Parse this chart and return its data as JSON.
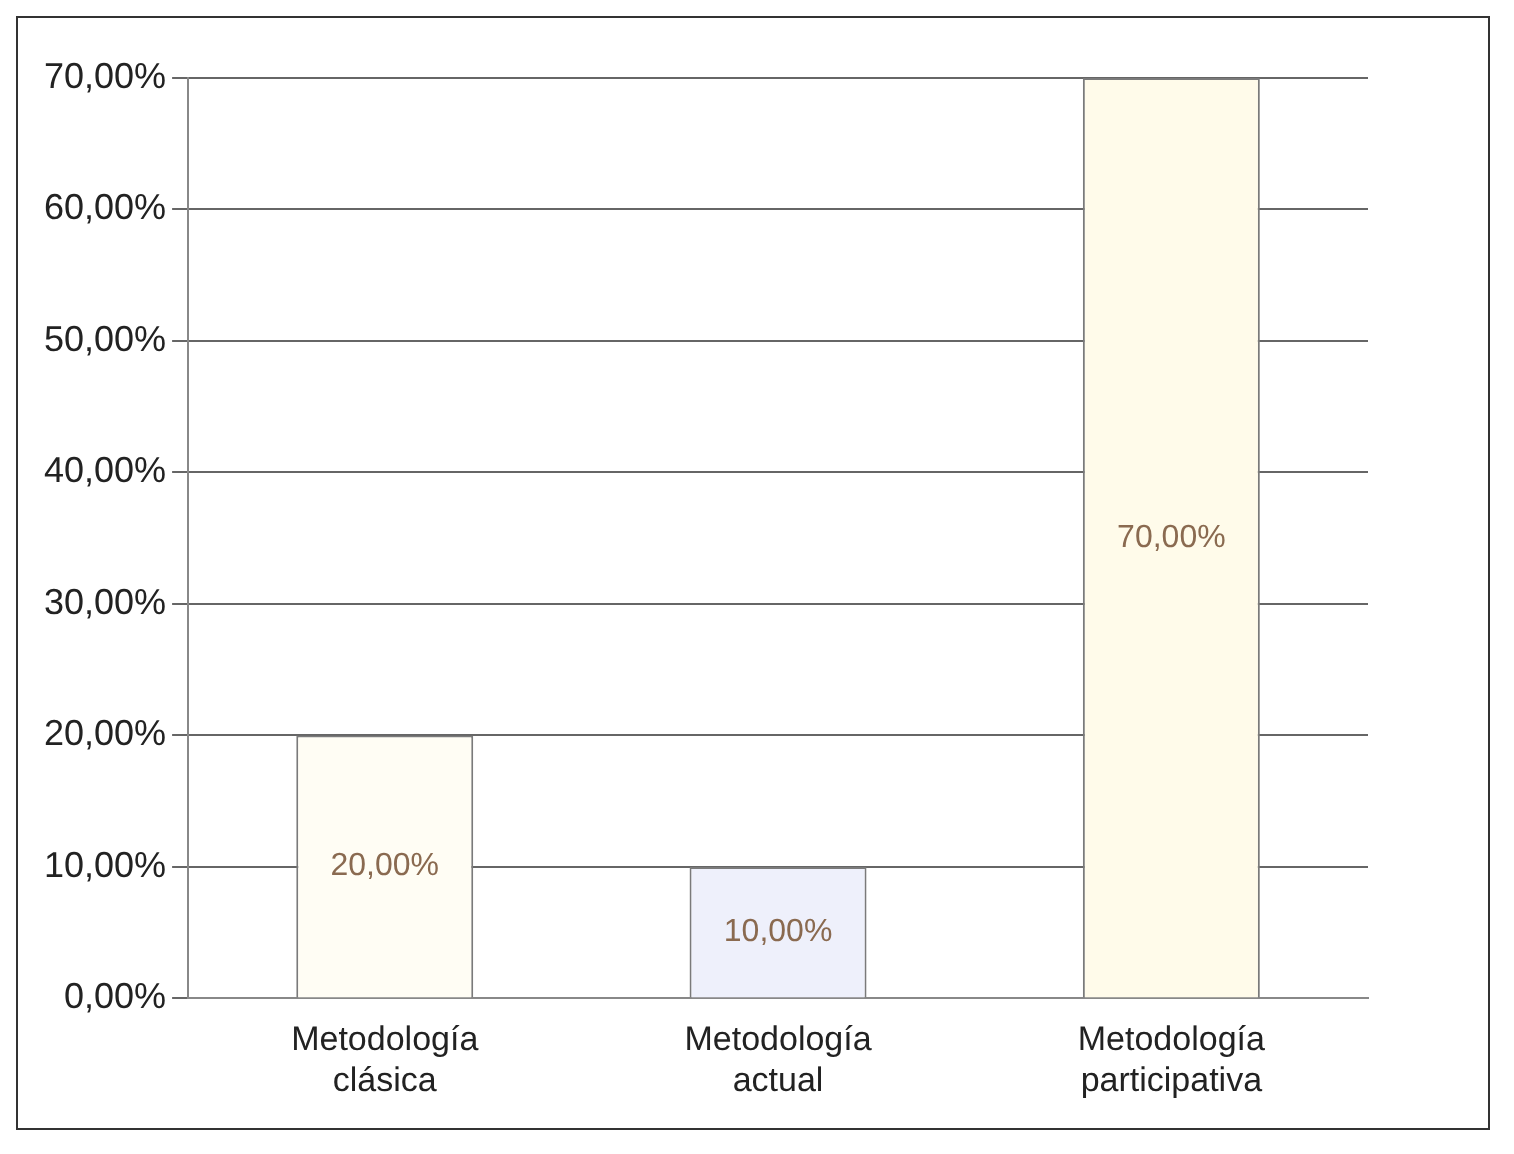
{
  "chart_data": {
    "type": "bar",
    "categories": [
      "Metodología clásica",
      "Metodología actual",
      "Metodología participativa"
    ],
    "values": [
      20,
      10,
      70
    ],
    "colors": [
      "#fffdf4",
      "#eef0fb",
      "#fffbea"
    ],
    "value_labels": [
      "20,00%",
      "10,00%",
      "70,00%"
    ],
    "ylim": [
      0,
      70
    ],
    "yticks": [
      {
        "value": 0,
        "label": "0,00%"
      },
      {
        "value": 10,
        "label": "10,00%"
      },
      {
        "value": 20,
        "label": "20,00%"
      },
      {
        "value": 30,
        "label": "30,00%"
      },
      {
        "value": 40,
        "label": "40,00%"
      },
      {
        "value": 50,
        "label": "50,00%"
      },
      {
        "value": 60,
        "label": "60,00%"
      },
      {
        "value": 70,
        "label": "70,00%"
      }
    ],
    "grid": "y"
  }
}
